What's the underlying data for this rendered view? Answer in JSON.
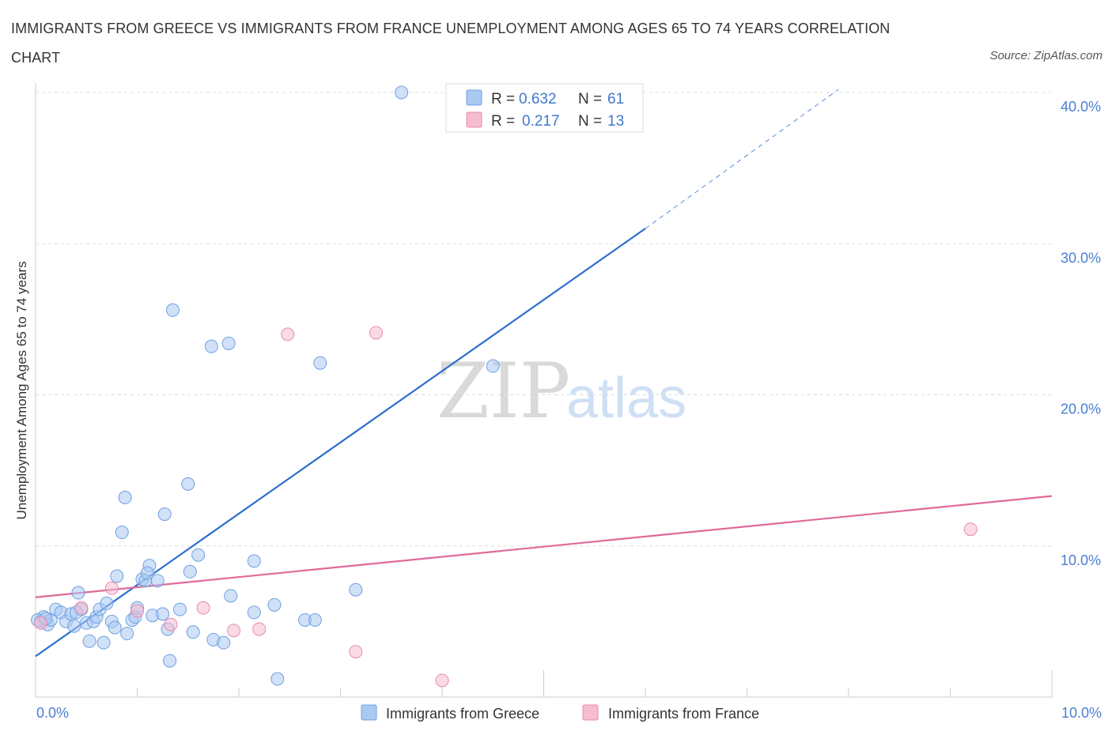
{
  "header": {
    "title": "IMMIGRANTS FROM GREECE VS IMMIGRANTS FROM FRANCE UNEMPLOYMENT AMONG AGES 65 TO 74 YEARS CORRELATION CHART",
    "source": "Source: ZipAtlas.com"
  },
  "colors": {
    "greece": "#a9c9f3",
    "greece_edge": "#6fa0e0",
    "greece_line": "#2b6ecf",
    "france": "#f6bcd0",
    "france_edge": "#e98aae",
    "france_line": "#e0699a",
    "grid": "#dddddd",
    "accent_text": "#4a7fd0"
  },
  "chart_data": {
    "type": "scatter",
    "title": "IMMIGRANTS FROM GREECE VS IMMIGRANTS FROM FRANCE UNEMPLOYMENT AMONG AGES 65 TO 74 YEARS CORRELATION CHART",
    "xlabel": "",
    "ylabel": "Unemployment Among Ages 65 to 74 years",
    "xlim": [
      0,
      10
    ],
    "ylim": [
      0,
      40
    ],
    "x_tick_labels": [
      "0.0%",
      "10.0%"
    ],
    "y_ticks": [
      10,
      20,
      30,
      40
    ],
    "y_tick_labels": [
      "10.0%",
      "20.0%",
      "30.0%",
      "40.0%"
    ],
    "legend": [
      {
        "r_label": "R =",
        "r_value": "0.632",
        "n_label": "N =",
        "n_value": "61"
      },
      {
        "r_label": "R =",
        "r_value": "0.217",
        "n_label": "N =",
        "n_value": "13"
      }
    ],
    "series": [
      {
        "name": "Immigrants from Greece",
        "points": [
          [
            0.05,
            5.0
          ],
          [
            0.08,
            5.3
          ],
          [
            0.12,
            4.8
          ],
          [
            0.15,
            5.1
          ],
          [
            0.2,
            5.8
          ],
          [
            0.25,
            5.6
          ],
          [
            0.3,
            5.0
          ],
          [
            0.35,
            5.5
          ],
          [
            0.38,
            4.7
          ],
          [
            0.42,
            6.9
          ],
          [
            0.45,
            5.8
          ],
          [
            0.5,
            4.9
          ],
          [
            0.53,
            3.7
          ],
          [
            0.57,
            5.0
          ],
          [
            0.6,
            5.3
          ],
          [
            0.63,
            5.8
          ],
          [
            0.67,
            3.6
          ],
          [
            0.7,
            6.2
          ],
          [
            0.75,
            5.0
          ],
          [
            0.78,
            4.6
          ],
          [
            0.8,
            8.0
          ],
          [
            0.85,
            10.9
          ],
          [
            0.88,
            13.2
          ],
          [
            0.9,
            4.2
          ],
          [
            0.95,
            5.1
          ],
          [
            0.98,
            5.3
          ],
          [
            1.0,
            5.9
          ],
          [
            1.05,
            7.8
          ],
          [
            1.08,
            7.7
          ],
          [
            1.12,
            8.7
          ],
          [
            1.15,
            5.4
          ],
          [
            1.2,
            7.7
          ],
          [
            1.25,
            5.5
          ],
          [
            1.27,
            12.1
          ],
          [
            1.3,
            4.5
          ],
          [
            1.32,
            2.4
          ],
          [
            1.35,
            25.6
          ],
          [
            1.42,
            5.8
          ],
          [
            1.5,
            14.1
          ],
          [
            1.52,
            8.3
          ],
          [
            1.55,
            4.3
          ],
          [
            1.6,
            9.4
          ],
          [
            1.73,
            23.2
          ],
          [
            1.75,
            3.8
          ],
          [
            1.85,
            3.6
          ],
          [
            1.9,
            23.4
          ],
          [
            1.92,
            6.7
          ],
          [
            2.15,
            9.0
          ],
          [
            2.15,
            5.6
          ],
          [
            2.35,
            6.1
          ],
          [
            2.38,
            1.2
          ],
          [
            2.65,
            5.1
          ],
          [
            2.75,
            5.1
          ],
          [
            2.8,
            22.1
          ],
          [
            3.15,
            7.1
          ],
          [
            3.6,
            40.0
          ],
          [
            4.5,
            21.9
          ],
          [
            0.02,
            5.1
          ],
          [
            0.1,
            5.2
          ],
          [
            1.1,
            8.2
          ],
          [
            0.4,
            5.6
          ]
        ],
        "trend": {
          "x": [
            0,
            6.0
          ],
          "y": [
            2.7,
            31.0
          ],
          "dashed_to": [
            7.9,
            40.2
          ]
        }
      },
      {
        "name": "Immigrants from France",
        "points": [
          [
            0.05,
            4.9
          ],
          [
            0.45,
            5.9
          ],
          [
            0.75,
            7.2
          ],
          [
            1.0,
            5.7
          ],
          [
            1.33,
            4.8
          ],
          [
            1.65,
            5.9
          ],
          [
            1.95,
            4.4
          ],
          [
            2.2,
            4.5
          ],
          [
            2.48,
            24.0
          ],
          [
            3.15,
            3.0
          ],
          [
            3.35,
            24.1
          ],
          [
            4.0,
            1.1
          ],
          [
            9.2,
            11.1
          ]
        ],
        "trend": {
          "x": [
            0,
            10.0
          ],
          "y": [
            6.6,
            13.3
          ]
        }
      }
    ]
  }
}
